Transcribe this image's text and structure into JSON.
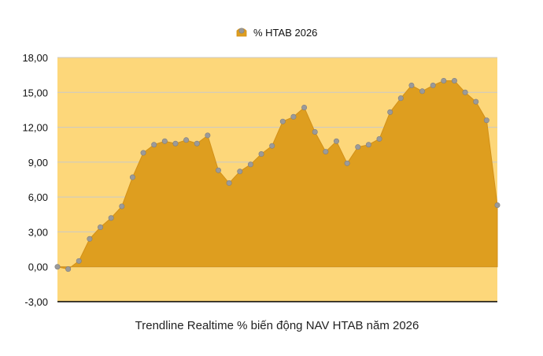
{
  "chart_data": {
    "type": "area",
    "title": "Trendline Realtime % biến động NAV HTAB năm 2026",
    "series": [
      {
        "name": "% HTAB 2026",
        "values": [
          0.0,
          -0.2,
          0.5,
          2.4,
          3.4,
          4.2,
          5.2,
          7.7,
          9.8,
          10.5,
          10.8,
          10.6,
          10.9,
          10.6,
          11.3,
          8.3,
          7.2,
          8.2,
          8.8,
          9.7,
          10.4,
          12.5,
          12.9,
          13.7,
          11.6,
          9.9,
          10.8,
          8.9,
          10.3,
          10.5,
          11.0,
          13.3,
          14.5,
          15.6,
          15.1,
          15.6,
          16.0,
          16.0,
          15.0,
          14.2,
          12.6,
          5.3
        ]
      }
    ],
    "ylim": [
      -3,
      18
    ],
    "yticks": [
      "-3,00",
      "0,00",
      "3,00",
      "6,00",
      "9,00",
      "12,00",
      "15,00",
      "18,00"
    ],
    "grid": true,
    "legend_position": "top-center",
    "colors": {
      "area_fill": "#de9e1f",
      "area_stroke": "#d29018",
      "plot_background": "#fdd77a",
      "marker": "#9a9a9a",
      "gridline": "#c9c9c9",
      "baseline": "#000000"
    }
  }
}
